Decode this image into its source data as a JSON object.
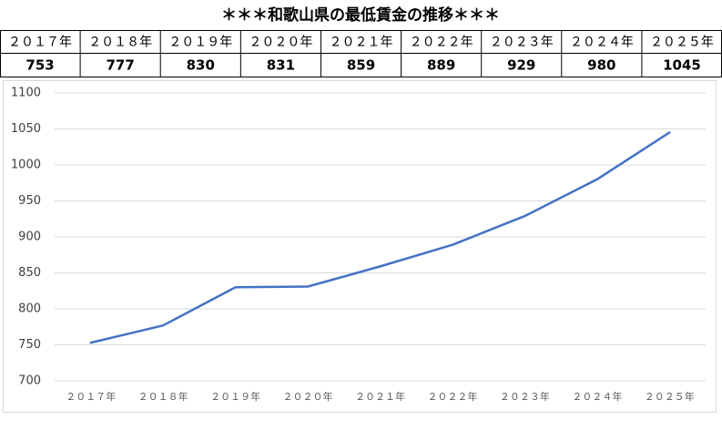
{
  "chart_data": {
    "type": "line",
    "title": "＊＊＊和歌山県の最低賃金の推移＊＊＊",
    "categories": [
      "２０１７年",
      "２０１８年",
      "２０１９年",
      "２０２０年",
      "２０２１年",
      "２０２２年",
      "２０２３年",
      "２０２４年",
      "２０２５年"
    ],
    "values": [
      753,
      777,
      830,
      831,
      859,
      889,
      929,
      980,
      1045
    ],
    "color": "#4472c4",
    "ylim": [
      700,
      1100
    ],
    "yticks": [
      700,
      750,
      800,
      850,
      900,
      950,
      1000,
      1050,
      1100
    ],
    "grid": true
  }
}
